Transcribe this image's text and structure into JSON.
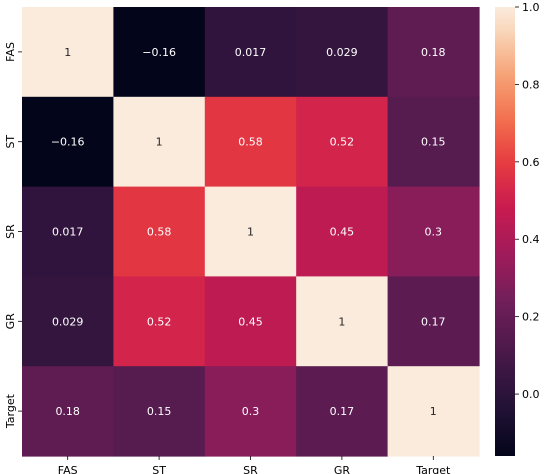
{
  "chart_data": {
    "type": "heatmap",
    "x_labels": [
      "FAS",
      "ST",
      "SR",
      "GR",
      "Target"
    ],
    "y_labels": [
      "FAS",
      "ST",
      "SR",
      "GR",
      "Target"
    ],
    "values": [
      [
        1,
        -0.16,
        0.017,
        0.029,
        0.18
      ],
      [
        -0.16,
        1,
        0.58,
        0.52,
        0.15
      ],
      [
        0.017,
        0.58,
        1,
        0.45,
        0.3
      ],
      [
        0.029,
        0.52,
        0.45,
        1,
        0.17
      ],
      [
        0.18,
        0.15,
        0.3,
        0.17,
        1
      ]
    ],
    "cell_text": [
      [
        "1",
        "−0.16",
        "0.017",
        "0.029",
        "0.18"
      ],
      [
        "−0.16",
        "1",
        "0.58",
        "0.52",
        "0.15"
      ],
      [
        "0.017",
        "0.58",
        "1",
        "0.45",
        "0.3"
      ],
      [
        "0.029",
        "0.52",
        "0.45",
        "1",
        "0.17"
      ],
      [
        "0.18",
        "0.15",
        "0.3",
        "0.17",
        "1"
      ]
    ],
    "colorbar": {
      "range": [
        -0.16,
        1.0
      ],
      "ticks": [
        1.0,
        0.8,
        0.6,
        0.4,
        0.2,
        0.0
      ],
      "tick_labels": [
        "1.0",
        "0.8",
        "0.6",
        "0.4",
        "0.2",
        "0.0"
      ]
    },
    "colormap": "rocket",
    "annotation_color_dark_bg": "#ffffff",
    "annotation_color_light_bg": "#262626"
  }
}
